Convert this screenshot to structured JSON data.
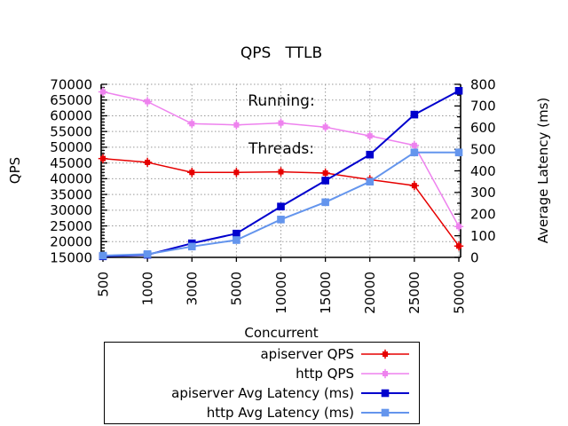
{
  "title": {
    "line1": "QPS   TTLB",
    "line2": "Running:",
    "line3": "Threads:"
  },
  "chart_data": {
    "type": "line",
    "x_categories": [
      500,
      1000,
      3000,
      5000,
      10000,
      15000,
      20000,
      25000,
      50000
    ],
    "xlabel": "Concurrent",
    "ylabel_left": "QPS",
    "ylabel_right": "Average Latency (ms)",
    "y_left": {
      "min": 15000,
      "max": 70000,
      "tick_step": 5000,
      "minor_step": 1000
    },
    "y_right": {
      "min": 0,
      "max": 800,
      "tick_step": 100,
      "minor_step": 50
    },
    "grid": true,
    "grid_color": "#999999",
    "border_color": "#000000",
    "legend_position": "bottom-center-boxed",
    "series": [
      {
        "name": "apiserver QPS",
        "axis": "left",
        "color": "#e60000",
        "marker": "star-square",
        "values": [
          46400,
          45200,
          42000,
          42000,
          42200,
          41800,
          39700,
          37800,
          18600
        ]
      },
      {
        "name": "http QPS",
        "axis": "left",
        "color": "#ee82ee",
        "marker": "star-square",
        "values": [
          67600,
          64500,
          57500,
          57100,
          57700,
          56400,
          53600,
          50600,
          24800
        ]
      },
      {
        "name": "apiserver Avg Latency (ms)",
        "axis": "right",
        "color": "#0000cd",
        "marker": "square",
        "values": [
          5,
          12,
          65,
          110,
          235,
          355,
          475,
          660,
          770
        ]
      },
      {
        "name": "http Avg Latency (ms)",
        "axis": "right",
        "color": "#6495ed",
        "marker": "square",
        "values": [
          8,
          15,
          50,
          80,
          175,
          255,
          350,
          485,
          485
        ]
      }
    ]
  }
}
